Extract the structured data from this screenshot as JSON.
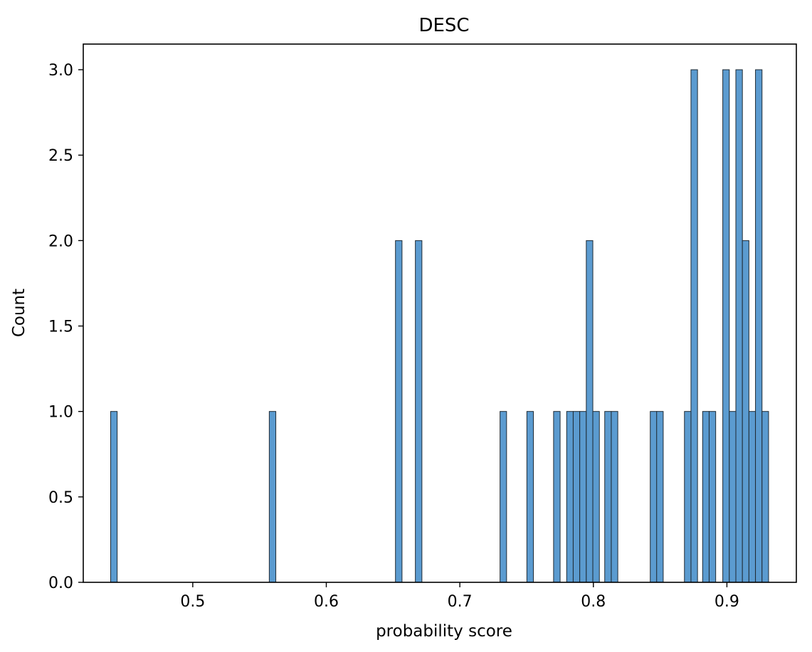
{
  "chart_data": {
    "type": "bar",
    "title": "DESC",
    "xlabel": "probability score",
    "ylabel": "Count",
    "xlim": [
      0.418,
      0.952
    ],
    "ylim": [
      0,
      3.15
    ],
    "x_ticks": [
      0.5,
      0.6,
      0.7,
      0.8,
      0.9
    ],
    "x_tick_labels": [
      "0.5",
      "0.6",
      "0.7",
      "0.8",
      "0.9"
    ],
    "y_ticks": [
      0,
      0.5,
      1,
      1.5,
      2,
      2.5,
      3
    ],
    "y_tick_labels": [
      "0.0",
      "0.5",
      "1.0",
      "1.5",
      "2.0",
      "2.5",
      "3.0"
    ],
    "bin_width": 0.0049,
    "bins": [
      {
        "x": 0.4385,
        "count": 1
      },
      {
        "x": 0.5573,
        "count": 1
      },
      {
        "x": 0.6518,
        "count": 2
      },
      {
        "x": 0.6667,
        "count": 2
      },
      {
        "x": 0.7301,
        "count": 1
      },
      {
        "x": 0.7502,
        "count": 1
      },
      {
        "x": 0.7702,
        "count": 1
      },
      {
        "x": 0.78,
        "count": 1
      },
      {
        "x": 0.7849,
        "count": 1
      },
      {
        "x": 0.7898,
        "count": 1
      },
      {
        "x": 0.7947,
        "count": 2
      },
      {
        "x": 0.7996,
        "count": 1
      },
      {
        "x": 0.8085,
        "count": 1
      },
      {
        "x": 0.8134,
        "count": 1
      },
      {
        "x": 0.8426,
        "count": 1
      },
      {
        "x": 0.8474,
        "count": 1
      },
      {
        "x": 0.8682,
        "count": 1
      },
      {
        "x": 0.8731,
        "count": 3
      },
      {
        "x": 0.8818,
        "count": 1
      },
      {
        "x": 0.8867,
        "count": 1
      },
      {
        "x": 0.8969,
        "count": 3
      },
      {
        "x": 0.9018,
        "count": 1
      },
      {
        "x": 0.9067,
        "count": 3
      },
      {
        "x": 0.9116,
        "count": 2
      },
      {
        "x": 0.9165,
        "count": 1
      },
      {
        "x": 0.9214,
        "count": 3
      },
      {
        "x": 0.9263,
        "count": 1
      }
    ],
    "grid": false,
    "bar_color": "#5b9bd0",
    "bar_edge_color": "#1f2a33"
  }
}
